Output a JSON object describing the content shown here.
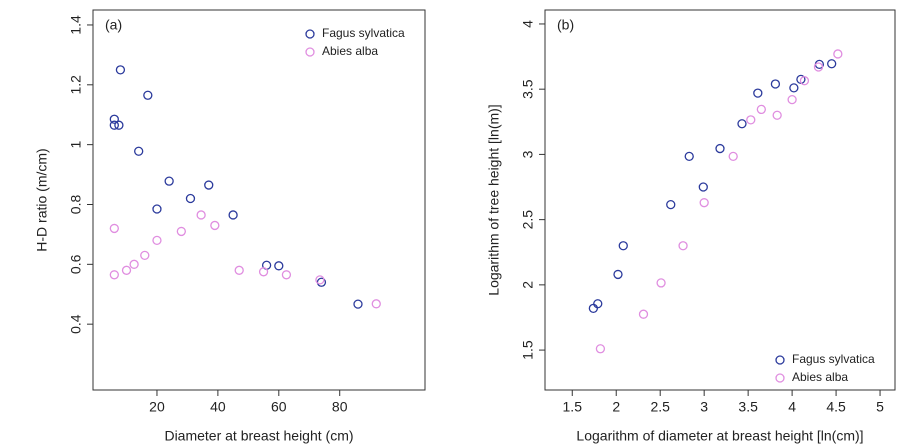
{
  "chart_data": [
    {
      "type": "scatter",
      "title": "(a)",
      "x_label": "Diameter at breast height (cm)",
      "y_label": "H-D ratio (m/cm)",
      "xlim": [
        -1,
        108
      ],
      "ylim": [
        0.18,
        1.45
      ],
      "xticks": [
        20,
        40,
        60,
        80
      ],
      "yticks": [
        0.4,
        0.6,
        0.8,
        1.0,
        1.2,
        1.4
      ],
      "legend": "topright",
      "series": [
        {
          "name": "Fagus sylvatica",
          "color": "#2b3a9c",
          "x": [
            6,
            6,
            7.5,
            8,
            14,
            17,
            20,
            24,
            31,
            37,
            45,
            56,
            60,
            74,
            86
          ],
          "values": [
            1.085,
            1.065,
            1.065,
            1.25,
            0.978,
            1.165,
            0.785,
            0.878,
            0.82,
            0.865,
            0.765,
            0.597,
            0.595,
            0.54,
            0.467
          ]
        },
        {
          "name": "Abies alba",
          "color": "#e08ee0",
          "x": [
            6,
            6,
            10,
            12.5,
            16,
            20,
            28,
            34.5,
            39,
            47,
            55,
            62.5,
            73.5,
            92
          ],
          "values": [
            0.72,
            0.565,
            0.58,
            0.6,
            0.63,
            0.68,
            0.71,
            0.765,
            0.73,
            0.58,
            0.575,
            0.565,
            0.548,
            0.468
          ]
        }
      ]
    },
    {
      "type": "scatter",
      "title": "(b)",
      "x_label": "Logarithm of diameter at breast height [ln(cm)]",
      "y_label": "Logarithm of tree height [ln(m)]",
      "xlim": [
        1.19,
        5.17
      ],
      "ylim": [
        1.194,
        4.107
      ],
      "xticks": [
        1.5,
        2.0,
        2.5,
        3.0,
        3.5,
        4.0,
        4.5,
        5.0
      ],
      "yticks": [
        1.5,
        2.0,
        2.5,
        3.0,
        3.5,
        4.0
      ],
      "legend": "bottomright",
      "series": [
        {
          "name": "Fagus sylvatica",
          "color": "#2b3a9c",
          "x": [
            1.74,
            1.79,
            2.02,
            2.08,
            2.62,
            2.83,
            2.99,
            3.18,
            3.43,
            3.61,
            3.81,
            4.02,
            4.1,
            4.31,
            4.45
          ],
          "values": [
            1.82,
            1.855,
            2.08,
            2.3,
            2.615,
            2.985,
            2.75,
            3.045,
            3.235,
            3.47,
            3.54,
            3.51,
            3.575,
            3.69,
            3.695
          ]
        },
        {
          "name": "Abies alba",
          "color": "#e08ee0",
          "x": [
            1.82,
            2.31,
            2.51,
            2.76,
            3.0,
            3.33,
            3.53,
            3.65,
            3.83,
            4.0,
            4.14,
            4.3,
            4.52
          ],
          "values": [
            1.51,
            1.775,
            2.015,
            2.3,
            2.63,
            2.985,
            3.265,
            3.345,
            3.3,
            3.42,
            3.565,
            3.67,
            3.77
          ]
        }
      ]
    }
  ]
}
